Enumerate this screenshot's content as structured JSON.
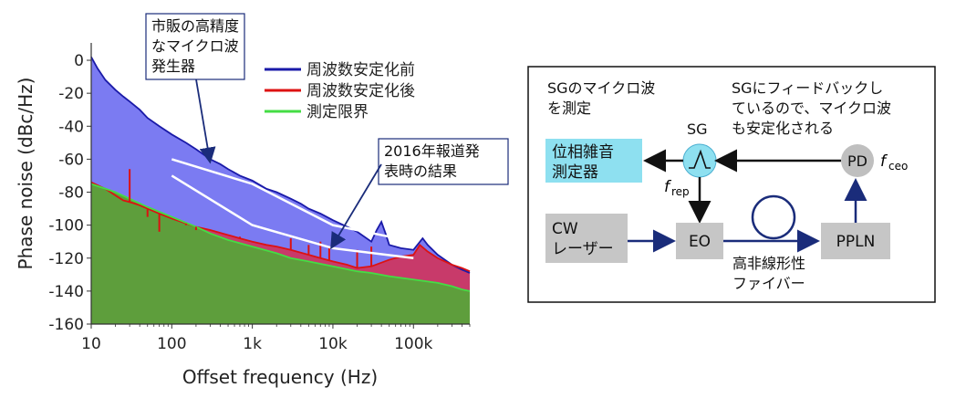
{
  "chart_data": {
    "type": "area",
    "x_scale": "log",
    "xlim": [
      10,
      500000
    ],
    "ylim": [
      -160,
      5
    ],
    "xlabel": "Offset frequency (Hz)",
    "ylabel": "Phase noise (dBc/Hz)",
    "xticks": [
      {
        "value": 10,
        "label": "10"
      },
      {
        "value": 100,
        "label": "100"
      },
      {
        "value": 1000,
        "label": "1k"
      },
      {
        "value": 10000,
        "label": "10k"
      },
      {
        "value": 100000,
        "label": "100k"
      }
    ],
    "yticks": [
      0,
      -20,
      -40,
      -60,
      -80,
      -100,
      -120,
      -140,
      -160
    ],
    "legend_position": "top-right",
    "series": [
      {
        "name": "周波数安定化前",
        "color": "#1a1aa8",
        "fill": "#7b7bf2",
        "x": [
          10,
          12,
          15,
          20,
          25,
          30,
          40,
          50,
          70,
          100,
          150,
          200,
          300,
          400,
          500,
          700,
          1000,
          1500,
          2000,
          3000,
          4000,
          5000,
          7000,
          10000,
          15000,
          20000,
          30000,
          35000,
          40000,
          45000,
          50000,
          70000,
          100000,
          130000,
          150000,
          200000,
          300000,
          400000,
          500000
        ],
        "y": [
          2,
          -5,
          -12,
          -18,
          -22,
          -25,
          -30,
          -35,
          -40,
          -45,
          -50,
          -54,
          -60,
          -63,
          -66,
          -70,
          -73,
          -78,
          -80,
          -84,
          -87,
          -90,
          -93,
          -97,
          -101,
          -104,
          -110,
          -103,
          -98,
          -105,
          -112,
          -114,
          -115,
          -108,
          -112,
          -118,
          -124,
          -127,
          -129
        ]
      },
      {
        "name": "周波数安定化後",
        "color": "#dd1111",
        "fill": "#c83a6a",
        "x": [
          10,
          15,
          20,
          25,
          30,
          35,
          40,
          50,
          70,
          100,
          150,
          200,
          300,
          500,
          700,
          1000,
          1500,
          2000,
          3000,
          5000,
          7000,
          10000,
          15000,
          20000,
          30000,
          50000,
          70000,
          100000,
          120000,
          150000,
          200000,
          300000,
          400000,
          500000
        ],
        "y": [
          -74,
          -78,
          -82,
          -85,
          -86,
          -87,
          -88,
          -90,
          -93,
          -96,
          -99,
          -101,
          -103,
          -106,
          -108,
          -110,
          -112,
          -113,
          -115,
          -118,
          -120,
          -122,
          -124,
          -126,
          -125,
          -121,
          -119,
          -118,
          -112,
          -116,
          -120,
          -124,
          -126,
          -128
        ]
      },
      {
        "name": "測定限界",
        "color": "#44dd44",
        "fill": "#5e9e3c",
        "x": [
          10,
          20,
          30,
          50,
          100,
          200,
          300,
          500,
          1000,
          2000,
          3000,
          5000,
          10000,
          20000,
          30000,
          50000,
          100000,
          200000,
          300000,
          400000,
          500000
        ],
        "y": [
          -75,
          -80,
          -84,
          -89,
          -95,
          -101,
          -105,
          -109,
          -113,
          -117,
          -120,
          -122,
          -125,
          -128,
          -129,
          -131,
          -133,
          -135,
          -137,
          -139,
          -140
        ]
      }
    ],
    "spikes": [
      {
        "x": 30,
        "y": -66
      },
      {
        "x": 50,
        "y": -95
      },
      {
        "x": 70,
        "y": -104
      },
      {
        "x": 150,
        "y": -100
      },
      {
        "x": 200,
        "y": -103
      },
      {
        "x": 700,
        "y": -107
      },
      {
        "x": 3000,
        "y": -108
      },
      {
        "x": 5000,
        "y": -112
      },
      {
        "x": 7000,
        "y": -110
      },
      {
        "x": 9000,
        "y": -113
      },
      {
        "x": 20000,
        "y": -115
      },
      {
        "x": 30000,
        "y": -113
      }
    ],
    "guide_lines": [
      {
        "x": [
          100,
          1000,
          10000,
          100000
        ],
        "y": [
          -60,
          -75,
          -100,
          -110
        ]
      },
      {
        "x": [
          100,
          1000,
          10000,
          100000
        ],
        "y": [
          -70,
          -100,
          -114,
          -120
        ]
      }
    ],
    "annotations": [
      {
        "lines": [
          "市販の高精度",
          "なマイクロ波",
          "発生器"
        ]
      },
      {
        "lines": [
          "2016年報道発",
          "表時の結果"
        ]
      }
    ]
  },
  "diagram": {
    "sg_measure_text": [
      "SGのマイクロ波",
      "を測定"
    ],
    "feedback_text": [
      "SGにフィードバックし",
      "ているので、マイクロ波",
      "も安定化される"
    ],
    "sg_label": "SG",
    "phase_noise_box": [
      "位相雑音",
      "測定器"
    ],
    "pd_label": "PD",
    "fceo_f": "f",
    "fceo_sub": "ceo",
    "frep_f": "f",
    "frep_sub": "rep",
    "cw_box": [
      "CW",
      "レーザー"
    ],
    "eo_label": "EO",
    "ppln_label": "PPLN",
    "fiber_text": [
      "高非線形性",
      "ファイバー"
    ]
  }
}
